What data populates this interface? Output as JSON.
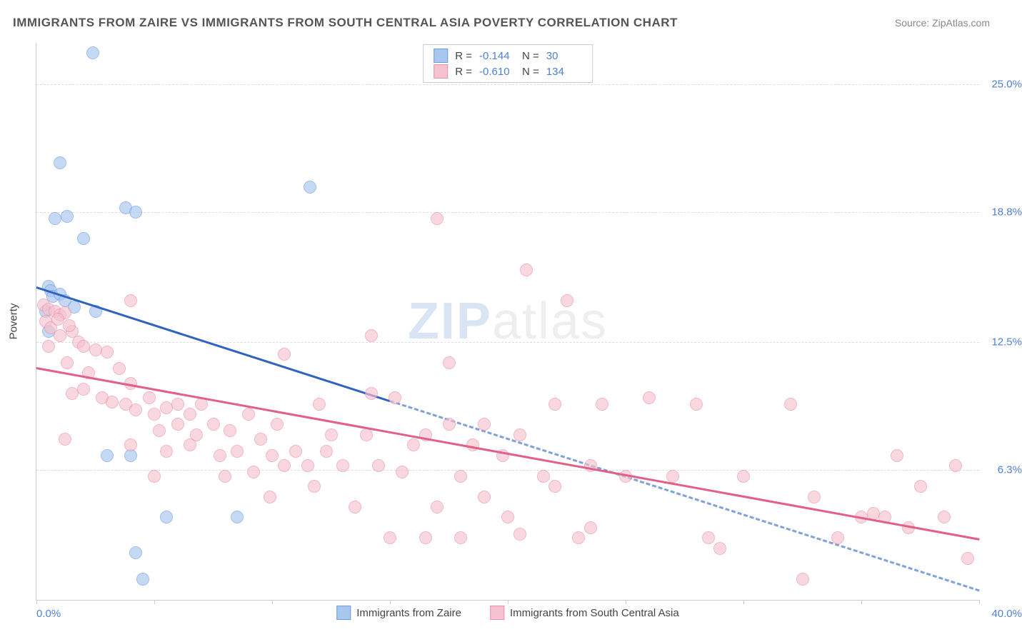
{
  "title": "IMMIGRANTS FROM ZAIRE VS IMMIGRANTS FROM SOUTH CENTRAL ASIA POVERTY CORRELATION CHART",
  "source": "Source: ZipAtlas.com",
  "watermark": {
    "bold": "ZIP",
    "light": "atlas"
  },
  "yaxis": {
    "title": "Poverty"
  },
  "chart": {
    "type": "scatter",
    "background_color": "#ffffff",
    "grid_color": "#dddddd",
    "axis_color": "#cccccc",
    "tick_label_color": "#4f7fd6",
    "xlim": [
      0,
      40
    ],
    "ylim": [
      0,
      27
    ],
    "xticks_pct": [
      0,
      12.5,
      25,
      37.5,
      50,
      62.5,
      75,
      87.5,
      100
    ],
    "ygrid": [
      {
        "val": 6.3,
        "label": "6.3%"
      },
      {
        "val": 12.5,
        "label": "12.5%"
      },
      {
        "val": 18.8,
        "label": "18.8%"
      },
      {
        "val": 25.0,
        "label": "25.0%"
      }
    ],
    "x_min_label": "0.0%",
    "x_max_label": "40.0%",
    "marker_radius": 8,
    "marker_fill_opacity": 0.25,
    "marker_stroke_width": 1.5,
    "trend_line_width": 3,
    "trend_dash": "6,5"
  },
  "series": [
    {
      "id": "zaire",
      "label": "Immigrants from Zaire",
      "color_fill": "#a9c6ef",
      "color_stroke": "#6d9de0",
      "trend_color": "#2f63c0",
      "R": "-0.144",
      "N": "30",
      "solid_x_extent": 15,
      "trend": {
        "x1": 0,
        "y1": 15.2,
        "x2": 40,
        "y2": 0.5
      },
      "points": [
        [
          2.4,
          26.5
        ],
        [
          1.0,
          21.2
        ],
        [
          0.8,
          18.5
        ],
        [
          1.3,
          18.6
        ],
        [
          3.8,
          19.0
        ],
        [
          4.2,
          18.8
        ],
        [
          2.0,
          17.5
        ],
        [
          0.5,
          15.2
        ],
        [
          0.6,
          15.0
        ],
        [
          0.7,
          14.7
        ],
        [
          1.0,
          14.8
        ],
        [
          1.2,
          14.5
        ],
        [
          0.4,
          14.0
        ],
        [
          1.6,
          14.2
        ],
        [
          2.5,
          14.0
        ],
        [
          0.5,
          13.0
        ],
        [
          11.6,
          20.0
        ],
        [
          3.0,
          7.0
        ],
        [
          4.0,
          7.0
        ],
        [
          5.5,
          4.0
        ],
        [
          8.5,
          4.0
        ],
        [
          4.2,
          2.3
        ],
        [
          4.5,
          1.0
        ]
      ]
    },
    {
      "id": "south_central_asia",
      "label": "Immigrants from South Central Asia",
      "color_fill": "#f6c2cf",
      "color_stroke": "#e992ab",
      "trend_color": "#e45f87",
      "R": "-0.610",
      "N": "134",
      "solid_x_extent": 40,
      "trend": {
        "x1": 0,
        "y1": 11.3,
        "x2": 40,
        "y2": 3.0
      },
      "points": [
        [
          17.0,
          18.5
        ],
        [
          20.8,
          16.0
        ],
        [
          22.5,
          14.5
        ],
        [
          14.2,
          12.8
        ],
        [
          17.5,
          11.5
        ],
        [
          19.0,
          8.5
        ],
        [
          0.3,
          14.3
        ],
        [
          0.5,
          14.1
        ],
        [
          0.8,
          14.0
        ],
        [
          1.0,
          13.8
        ],
        [
          0.4,
          13.5
        ],
        [
          1.2,
          13.9
        ],
        [
          0.6,
          13.2
        ],
        [
          1.5,
          13.0
        ],
        [
          0.9,
          13.6
        ],
        [
          1.4,
          13.3
        ],
        [
          4.0,
          14.5
        ],
        [
          0.5,
          12.3
        ],
        [
          1.0,
          12.8
        ],
        [
          1.8,
          12.5
        ],
        [
          2.0,
          12.3
        ],
        [
          2.5,
          12.1
        ],
        [
          3.0,
          12.0
        ],
        [
          1.3,
          11.5
        ],
        [
          2.2,
          11.0
        ],
        [
          3.5,
          11.2
        ],
        [
          4.0,
          10.5
        ],
        [
          1.2,
          7.8
        ],
        [
          1.5,
          10.0
        ],
        [
          2.0,
          10.2
        ],
        [
          2.8,
          9.8
        ],
        [
          3.2,
          9.6
        ],
        [
          3.8,
          9.5
        ],
        [
          4.2,
          9.2
        ],
        [
          4.8,
          9.8
        ],
        [
          5.0,
          9.0
        ],
        [
          5.5,
          9.3
        ],
        [
          6.0,
          9.5
        ],
        [
          6.5,
          9.0
        ],
        [
          7.0,
          9.5
        ],
        [
          5.2,
          8.2
        ],
        [
          6.0,
          8.5
        ],
        [
          6.8,
          8.0
        ],
        [
          7.5,
          8.5
        ],
        [
          8.2,
          8.2
        ],
        [
          9.0,
          9.0
        ],
        [
          4.0,
          7.5
        ],
        [
          5.5,
          7.2
        ],
        [
          6.5,
          7.5
        ],
        [
          7.8,
          7.0
        ],
        [
          8.5,
          7.2
        ],
        [
          9.5,
          7.8
        ],
        [
          10.2,
          8.5
        ],
        [
          10.0,
          7.0
        ],
        [
          11.0,
          7.2
        ],
        [
          12.0,
          9.5
        ],
        [
          11.5,
          6.5
        ],
        [
          12.5,
          8.0
        ],
        [
          8.0,
          6.0
        ],
        [
          9.2,
          6.2
        ],
        [
          10.5,
          6.5
        ],
        [
          11.8,
          5.5
        ],
        [
          13.0,
          6.5
        ],
        [
          12.3,
          7.2
        ],
        [
          5.0,
          6.0
        ],
        [
          9.9,
          5.0
        ],
        [
          14.0,
          8.0
        ],
        [
          14.5,
          6.5
        ],
        [
          15.2,
          9.8
        ],
        [
          15.5,
          6.2
        ],
        [
          16.0,
          7.5
        ],
        [
          16.5,
          8.0
        ],
        [
          17.5,
          8.5
        ],
        [
          18.0,
          6.0
        ],
        [
          17.0,
          4.5
        ],
        [
          18.5,
          7.5
        ],
        [
          19.0,
          5.0
        ],
        [
          19.8,
          7.0
        ],
        [
          20.5,
          8.0
        ],
        [
          20.0,
          4.0
        ],
        [
          21.5,
          6.0
        ],
        [
          22.0,
          9.5
        ],
        [
          22.0,
          5.5
        ],
        [
          23.5,
          6.5
        ],
        [
          24.0,
          9.5
        ],
        [
          25.0,
          6.0
        ],
        [
          23.0,
          3.0
        ],
        [
          23.5,
          3.5
        ],
        [
          26.0,
          9.8
        ],
        [
          27.0,
          6.0
        ],
        [
          28.0,
          9.5
        ],
        [
          28.5,
          3.0
        ],
        [
          30.0,
          6.0
        ],
        [
          29.0,
          2.5
        ],
        [
          32.0,
          9.5
        ],
        [
          33.0,
          5.0
        ],
        [
          32.5,
          1.0
        ],
        [
          34.0,
          3.0
        ],
        [
          35.0,
          4.0
        ],
        [
          35.5,
          4.2
        ],
        [
          36.0,
          4.0
        ],
        [
          36.5,
          7.0
        ],
        [
          37.0,
          3.5
        ],
        [
          37.5,
          5.5
        ],
        [
          38.5,
          4.0
        ],
        [
          39.0,
          6.5
        ],
        [
          39.5,
          2.0
        ],
        [
          15.0,
          3.0
        ],
        [
          16.5,
          3.0
        ],
        [
          18.0,
          3.0
        ],
        [
          20.5,
          3.2
        ],
        [
          13.5,
          4.5
        ],
        [
          10.5,
          11.9
        ],
        [
          14.2,
          10.0
        ]
      ]
    }
  ],
  "legend": {
    "R_label": "R =",
    "N_label": "N ="
  }
}
